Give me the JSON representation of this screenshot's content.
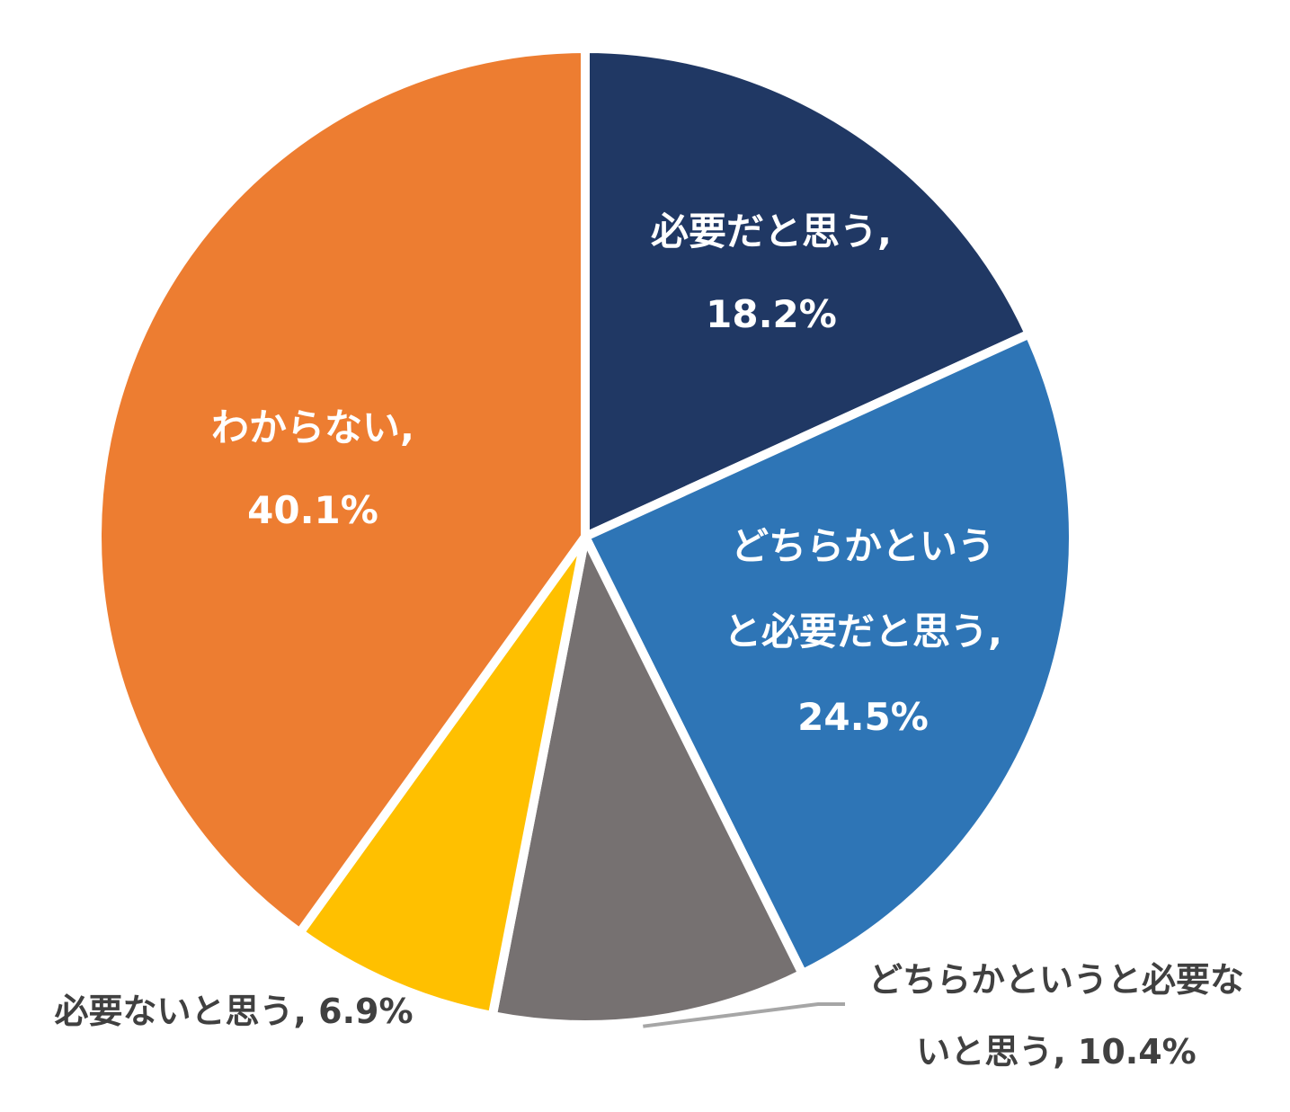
{
  "chart_data": {
    "type": "pie",
    "title": "",
    "start_angle_deg": 0,
    "direction": "clockwise",
    "slices": [
      {
        "name": "必要だと思う",
        "value": 18.2,
        "color": "#203864",
        "label_lines": [
          "必要だと思う,",
          "18.2%"
        ],
        "label_position": "inside"
      },
      {
        "name": "どちらかというと必要だと思う",
        "value": 24.5,
        "color": "#2E75B6",
        "label_lines": [
          "どちらかという",
          "と必要だと思う,",
          "24.5%"
        ],
        "label_position": "inside"
      },
      {
        "name": "どちらかというと必要ないと思う",
        "value": 10.4,
        "color": "#767171",
        "label_lines": [
          "どちらかというと必要な",
          "いと思う, 10.4%"
        ],
        "label_position": "outside-bottom-right"
      },
      {
        "name": "必要ないと思う",
        "value": 6.9,
        "color": "#FFC000",
        "label_lines": [
          "必要ないと思う, 6.9%"
        ],
        "label_position": "outside-bottom-left"
      },
      {
        "name": "わからない",
        "value": 40.1,
        "color": "#ED7D31",
        "label_lines": [
          "わからない,",
          "40.1%"
        ],
        "label_position": "inside"
      }
    ]
  }
}
